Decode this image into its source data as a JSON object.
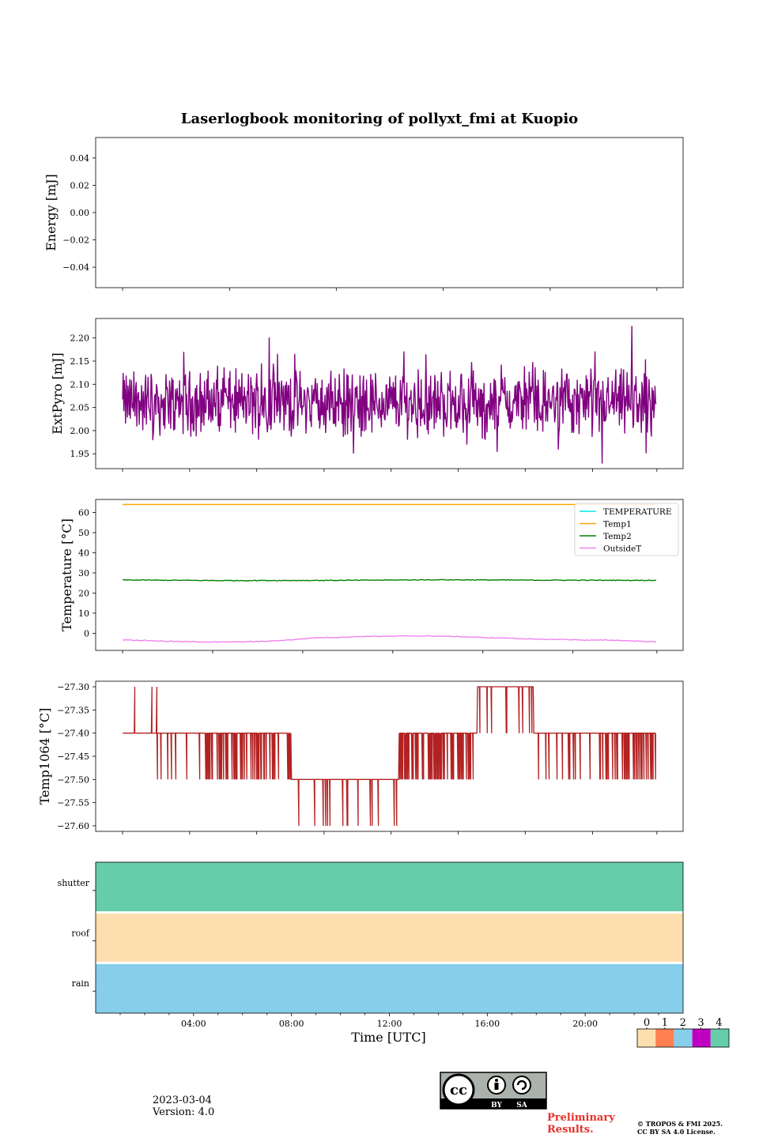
{
  "title": "Laserlogbook monitoring of pollyxt_fmi at Kuopio",
  "footer": {
    "date": "2023-03-04",
    "version": "Version: 4.0",
    "preliminary_line1": "Preliminary",
    "preliminary_line2": "Results.",
    "copyright_line1": "© TROPOS & FMI 2025.",
    "copyright_line2": "CC BY SA 4.0 License.",
    "cc_label_by": "BY",
    "cc_label_sa": "SA"
  },
  "colors": {
    "extpyro": "#800080",
    "temperature": "#00e5e5",
    "temp1": "#ffa500",
    "temp2": "#008000",
    "outsidet": "#ee82ee",
    "temp1064": "#b22222",
    "status": [
      "#fddeae",
      "#ff7f50",
      "#87ceeb",
      "#c000c0",
      "#66cdaa"
    ]
  },
  "chart_data": [
    {
      "id": "energy",
      "type": "line",
      "ylabel": "Energy [mJ]",
      "ylim": [
        -0.055,
        0.055
      ],
      "yticks": [
        0.04,
        0.02,
        0.0,
        -0.02,
        -0.04
      ],
      "ytick_labels": [
        "0.04",
        "0.02",
        "0.00",
        "−0.02",
        "−0.04"
      ],
      "series": []
    },
    {
      "id": "extpyro",
      "type": "line",
      "ylabel": "ExtPyro [mJ]",
      "ylim": [
        1.918,
        2.242
      ],
      "yticks": [
        2.2,
        2.15,
        2.1,
        2.05,
        2.0,
        1.95
      ],
      "ytick_labels": [
        "2.20",
        "2.15",
        "2.10",
        "2.05",
        "2.00",
        "1.95"
      ],
      "series": [
        {
          "name": "ExtPyro",
          "mean": 2.06,
          "min": 1.93,
          "max": 2.23,
          "x_start_h": 1.1,
          "x_end_h": 22.9,
          "spikes": [
            [
              7.1,
              2.2
            ],
            [
              21.9,
              2.225
            ],
            [
              20.4,
              2.17
            ],
            [
              12.6,
              2.17
            ],
            [
              16.4,
              1.955
            ],
            [
              20.7,
              1.93
            ],
            [
              18.9,
              1.96
            ]
          ]
        }
      ]
    },
    {
      "id": "temperature",
      "type": "line",
      "ylabel": "Temperature [°C]",
      "ylim": [
        -8.5,
        66.5
      ],
      "yticks": [
        60,
        50,
        40,
        30,
        20,
        10,
        0
      ],
      "ytick_labels": [
        "60",
        "50",
        "40",
        "30",
        "20",
        "10",
        "0"
      ],
      "legend": [
        "TEMPERATURE",
        "Temp1",
        "Temp2",
        "OutsideT"
      ],
      "series": [
        {
          "name": "TEMPERATURE",
          "x": [],
          "values": []
        },
        {
          "name": "Temp1",
          "x": [
            1.1,
            22.9
          ],
          "values": [
            64,
            64
          ]
        },
        {
          "name": "Temp2",
          "x": [
            1.1,
            5,
            10,
            14,
            18,
            22.9
          ],
          "values": [
            26.5,
            26.2,
            26.3,
            26.6,
            26.4,
            26.3
          ]
        },
        {
          "name": "OutsideT",
          "x": [
            1.1,
            3,
            5,
            7,
            8,
            9,
            10,
            11,
            12,
            13,
            14,
            15,
            16,
            17,
            18,
            19,
            20,
            21,
            22,
            22.9
          ],
          "values": [
            -3.2,
            -4.0,
            -4.4,
            -4.0,
            -3.2,
            -2.2,
            -2.0,
            -1.5,
            -1.5,
            -1.3,
            -1.4,
            -1.7,
            -2.2,
            -2.4,
            -3.0,
            -3.0,
            -3.4,
            -3.4,
            -3.8,
            -4.3
          ]
        }
      ]
    },
    {
      "id": "temp1064",
      "type": "line",
      "ylabel": "Temp1064 [°C]",
      "ylim": [
        -27.612,
        -27.288
      ],
      "yticks": [
        -27.3,
        -27.35,
        -27.4,
        -27.45,
        -27.5,
        -27.55,
        -27.6
      ],
      "ytick_labels": [
        "−27.30",
        "−27.35",
        "−27.40",
        "−27.45",
        "−27.50",
        "−27.55",
        "−27.60"
      ],
      "series": [
        {
          "name": "Temp1064",
          "base": -27.4,
          "segments": [
            {
              "from": 1.1,
              "to": 8.0,
              "level": -27.4,
              "dip": -27.5,
              "up_spikes": [
                1.6,
                2.3,
                2.5
              ]
            },
            {
              "from": 8.0,
              "to": 12.4,
              "level": -27.5,
              "dip": -27.6
            },
            {
              "from": 12.4,
              "to": 15.6,
              "level": -27.4,
              "dip": -27.5
            },
            {
              "from": 15.6,
              "to": 17.9,
              "level": -27.3,
              "dip": -27.4
            },
            {
              "from": 17.9,
              "to": 22.9,
              "level": -27.4,
              "dip": -27.5
            }
          ]
        }
      ]
    },
    {
      "id": "status",
      "type": "heatmap",
      "rows": [
        "shutter",
        "roof",
        "rain"
      ],
      "row_values": [
        4,
        0,
        2
      ],
      "xlabel": "Time [UTC]",
      "xlim_h": [
        0,
        24
      ],
      "xticks_h": [
        4,
        8,
        12,
        16,
        20
      ],
      "xtick_labels": [
        "04:00",
        "08:00",
        "12:00",
        "16:00",
        "20:00"
      ],
      "colorbar_labels": [
        "0",
        "1",
        "2",
        "3",
        "4"
      ]
    }
  ]
}
